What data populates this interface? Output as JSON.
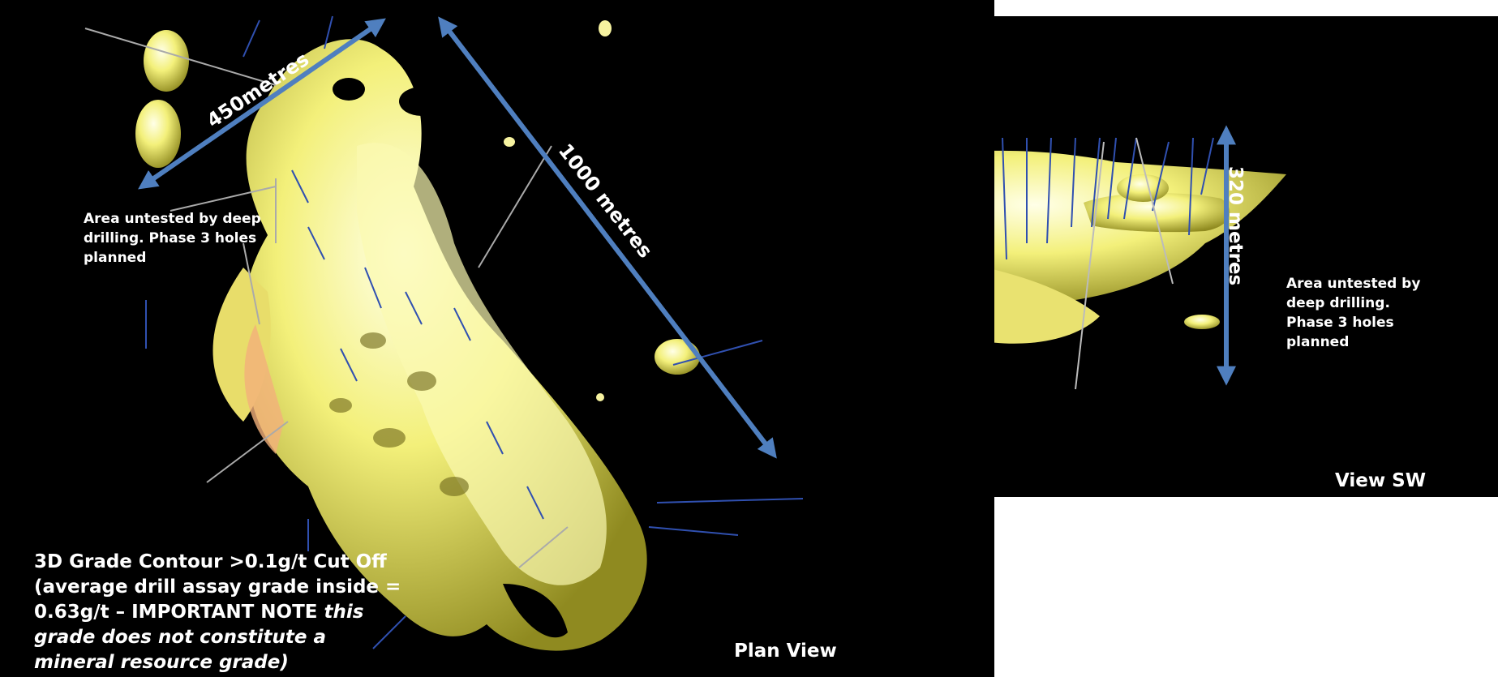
{
  "plan_view": {
    "dimension_width": "450metres",
    "dimension_length": "1000 metres",
    "untested_note": [
      "Area untested by deep",
      "drilling. Phase 3 holes",
      "planned"
    ],
    "grade_note": {
      "line1": "3D Grade Contour >0.1g/t Cut Off",
      "line2": "(average drill assay grade inside =",
      "line3_plain": "0.63g/t – IMPORTANT NOTE ",
      "line3_italic": "this",
      "line4": "grade does not constitute a",
      "line5": "mineral resource grade)"
    },
    "view_label": "Plan View"
  },
  "sw_view": {
    "dimension_height": "320 metres",
    "untested_note": [
      "Area untested by",
      "deep drilling.",
      "Phase 3 holes",
      "planned"
    ],
    "view_label": "View SW"
  },
  "colors": {
    "background": "#000000",
    "orebody": "#f1ef7a",
    "arrow": "#4f7fbf",
    "text": "#ffffff"
  }
}
